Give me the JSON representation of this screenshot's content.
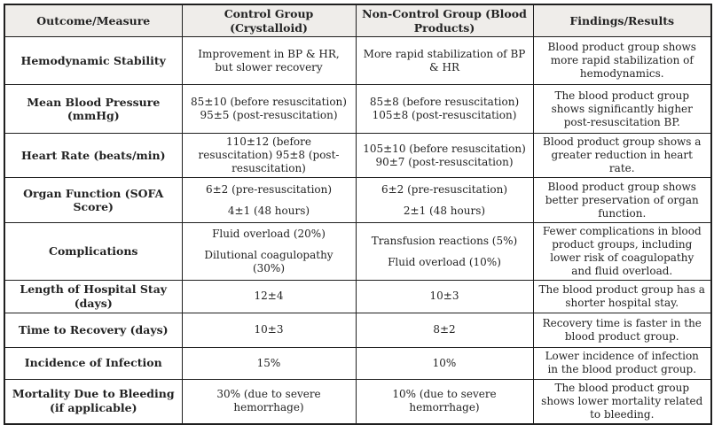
{
  "colors": {
    "header_background": "#efedea",
    "grid_border": "#1f1f1f",
    "text": "#232323",
    "page_background": "#ffffff"
  },
  "table": {
    "columns": [
      {
        "label": "Outcome/Measure"
      },
      {
        "label": "Control Group (Crystalloid)"
      },
      {
        "label": "Non-Control Group (Blood Products)"
      },
      {
        "label": "Findings/Results"
      }
    ],
    "rows": [
      {
        "measure": "Hemodynamic Stability",
        "control": [
          "Improvement in BP & HR, but slower recovery"
        ],
        "noncontrol": [
          "More rapid stabilization of BP & HR"
        ],
        "findings": "Blood product group shows more rapid stabilization of hemodynamics."
      },
      {
        "measure": "Mean Blood Pressure (mmHg)",
        "control": [
          "85±10 (before resuscitation) 95±5 (post-resuscitation)"
        ],
        "noncontrol": [
          "85±8 (before resuscitation) 105±8 (post-resuscitation)"
        ],
        "findings": "The blood product group shows significantly higher post-resuscitation BP."
      },
      {
        "measure": "Heart Rate (beats/min)",
        "control": [
          "110±12 (before resuscitation) 95±8 (post-resuscitation)"
        ],
        "noncontrol": [
          "105±10 (before resuscitation) 90±7 (post-resuscitation)"
        ],
        "findings": "Blood product group shows a greater reduction in heart rate."
      },
      {
        "measure": "Organ Function (SOFA Score)",
        "control": [
          "6±2 (pre-resuscitation)",
          "4±1 (48 hours)"
        ],
        "noncontrol": [
          "6±2 (pre-resuscitation)",
          "2±1 (48 hours)"
        ],
        "findings": "Blood product group shows better preservation of organ function."
      },
      {
        "measure": "Complications",
        "control": [
          "Fluid overload (20%)",
          "Dilutional coagulopathy (30%)"
        ],
        "noncontrol": [
          "Transfusion reactions (5%)",
          "Fluid overload (10%)"
        ],
        "findings": "Fewer complications in blood product groups, including lower risk of coagulopathy and fluid overload."
      },
      {
        "measure": "Length of Hospital Stay (days)",
        "control": [
          "12±4"
        ],
        "noncontrol": [
          "10±3"
        ],
        "findings": "The blood product group has a shorter hospital stay."
      },
      {
        "measure": "Time to Recovery (days)",
        "control": [
          "10±3"
        ],
        "noncontrol": [
          "8±2"
        ],
        "findings": "Recovery time is faster in the blood product group."
      },
      {
        "measure": "Incidence of Infection",
        "control": [
          "15%"
        ],
        "noncontrol": [
          "10%"
        ],
        "findings": "Lower incidence of infection in the blood product group."
      },
      {
        "measure": "Mortality Due to Bleeding (if applicable)",
        "control": [
          "30% (due to severe hemorrhage)"
        ],
        "noncontrol": [
          "10% (due to severe hemorrhage)"
        ],
        "findings": "The blood product group shows lower mortality related to bleeding."
      }
    ]
  }
}
